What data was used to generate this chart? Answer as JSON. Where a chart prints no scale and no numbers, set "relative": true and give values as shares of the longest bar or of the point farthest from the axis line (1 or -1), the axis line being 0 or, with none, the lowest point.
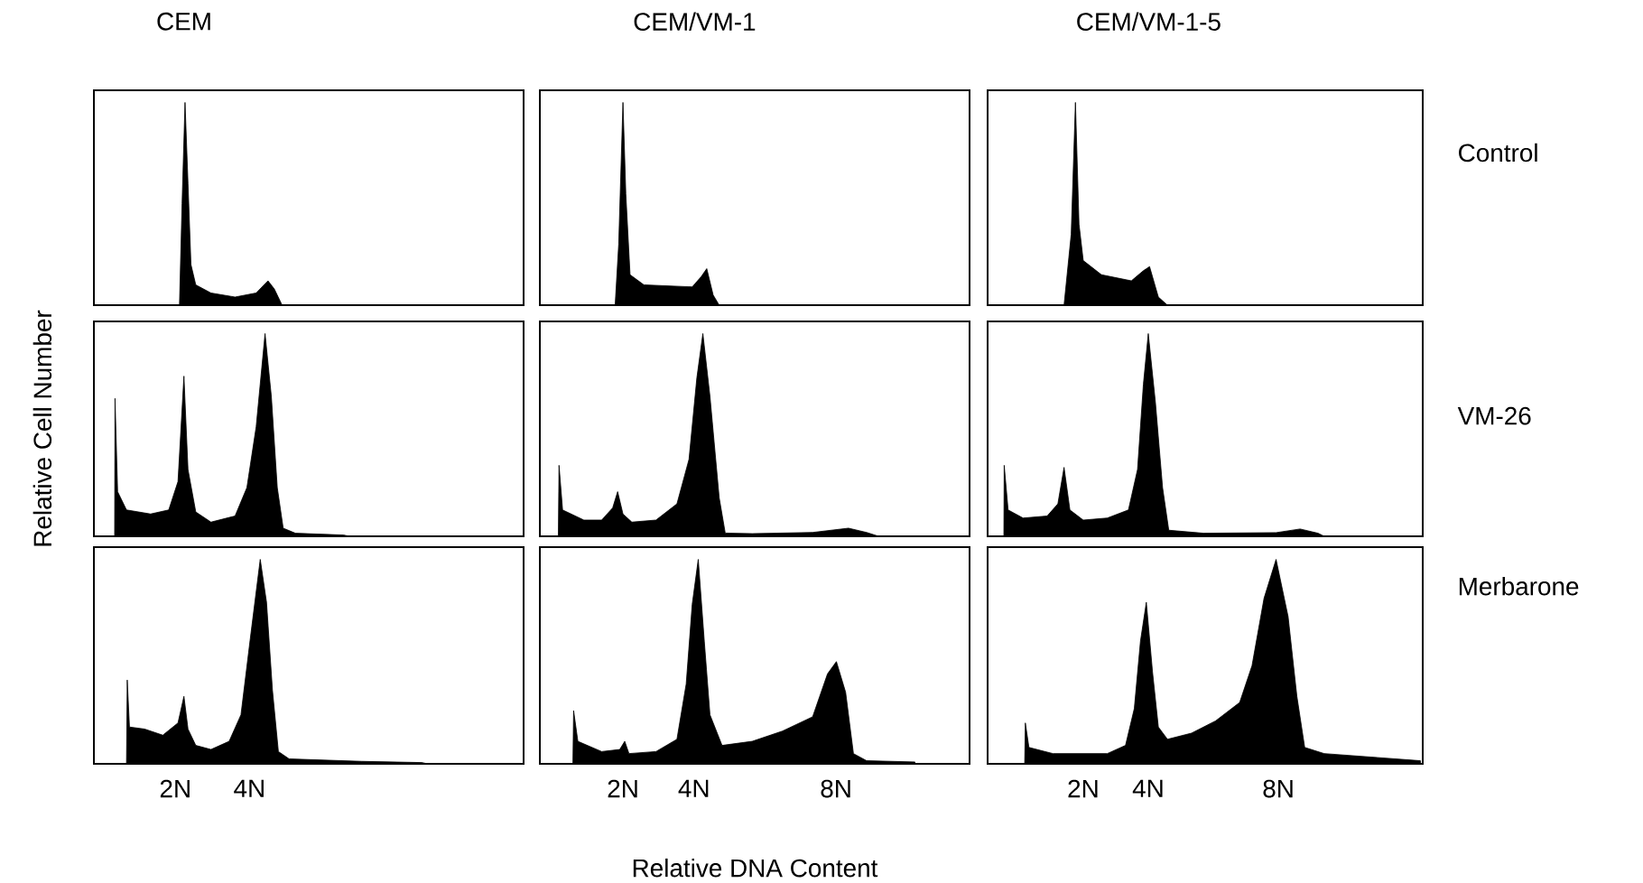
{
  "chart_data": [
    {
      "type": "area",
      "relative": true,
      "title": "CEM",
      "tick_labels": false,
      "color": "#000000",
      "xlim": [
        -0.2,
        11.4
      ],
      "x": [
        2.11,
        2.18,
        2.26,
        2.34,
        2.42,
        2.55,
        2.96,
        3.61,
        4.18,
        4.5,
        4.67,
        4.88
      ],
      "values": [
        0,
        0.5,
        1,
        0.6,
        0.2,
        0.1,
        0.06,
        0.04,
        0.06,
        0.12,
        0.08,
        0
      ]
    },
    {
      "type": "area",
      "relative": true,
      "title": "CEM/VM-1",
      "tick_labels": false,
      "color": "#000000",
      "xlim": [
        -0.34,
        11.76
      ],
      "x": [
        1.78,
        1.88,
        2.0,
        2.08,
        2.2,
        2.59,
        3.95,
        4.2,
        4.36,
        4.54,
        4.71
      ],
      "values": [
        0,
        0.3,
        1,
        0.55,
        0.15,
        0.1,
        0.09,
        0.14,
        0.18,
        0.05,
        0
      ]
    },
    {
      "type": "area",
      "relative": true,
      "title": "CEM/VM-1-5",
      "y2label": "Control",
      "tick_labels": false,
      "color": "#000000",
      "xlim": [
        -0.94,
        12.44
      ],
      "x": [
        1.41,
        1.63,
        1.76,
        1.87,
        2.0,
        2.56,
        3.48,
        3.85,
        4.04,
        4.31,
        4.59
      ],
      "values": [
        0,
        0.35,
        1,
        0.4,
        0.22,
        0.15,
        0.12,
        0.17,
        0.19,
        0.04,
        0
      ]
    },
    {
      "type": "area",
      "relative": true,
      "ylabel": "Relative Cell Number",
      "tick_labels": false,
      "color": "#000000",
      "xlim": [
        -0.2,
        11.4
      ],
      "x": [
        0.36,
        0.37,
        0.44,
        0.68,
        1.33,
        1.82,
        2.07,
        2.23,
        2.34,
        2.55,
        2.96,
        3.61,
        3.93,
        4.18,
        4.42,
        4.59,
        4.75,
        4.91,
        5.24,
        6.54,
        6.7
      ],
      "values": [
        0,
        0.68,
        0.22,
        0.13,
        0.11,
        0.13,
        0.27,
        0.79,
        0.33,
        0.12,
        0.07,
        0.1,
        0.24,
        0.54,
        1,
        0.69,
        0.24,
        0.04,
        0.015,
        0.006,
        0
      ]
    },
    {
      "type": "area",
      "relative": true,
      "tick_labels": false,
      "color": "#000000",
      "xlim": [
        -0.34,
        11.76
      ],
      "x": [
        0.18,
        0.2,
        0.3,
        0.9,
        1.4,
        1.71,
        1.85,
        2.0,
        2.25,
        2.93,
        3.52,
        3.86,
        4.08,
        4.25,
        4.45,
        4.71,
        4.88,
        5.64,
        7.34,
        8.35,
        8.86,
        9.2
      ],
      "values": [
        0,
        0.35,
        0.13,
        0.08,
        0.08,
        0.14,
        0.22,
        0.11,
        0.07,
        0.08,
        0.16,
        0.38,
        0.78,
        1,
        0.69,
        0.19,
        0.016,
        0.013,
        0.019,
        0.04,
        0.019,
        0
      ]
    },
    {
      "type": "area",
      "relative": true,
      "y2label": "VM-26",
      "tick_labels": false,
      "color": "#000000",
      "xlim": [
        -0.94,
        12.44
      ],
      "x": [
        -0.44,
        -0.43,
        -0.31,
        0.15,
        0.89,
        1.22,
        1.41,
        1.59,
        2.0,
        2.74,
        3.39,
        3.67,
        3.85,
        4.0,
        4.22,
        4.44,
        4.63,
        5.7,
        7.93,
        8.67,
        9.22,
        9.41
      ],
      "values": [
        0,
        0.35,
        0.13,
        0.09,
        0.1,
        0.16,
        0.34,
        0.13,
        0.08,
        0.09,
        0.13,
        0.33,
        0.75,
        1,
        0.66,
        0.24,
        0.03,
        0.015,
        0.018,
        0.036,
        0.015,
        0
      ]
    },
    {
      "type": "area",
      "relative": true,
      "tick_labels": "x",
      "color": "#000000",
      "xlim": [
        -0.2,
        11.4
      ],
      "xticks": [
        {
          "value": 2,
          "label": "2N"
        },
        {
          "value": 4,
          "label": "4N"
        }
      ],
      "x": [
        0.68,
        0.7,
        0.76,
        1.17,
        1.66,
        2.07,
        2.23,
        2.34,
        2.55,
        2.96,
        3.45,
        3.77,
        4.02,
        4.29,
        4.46,
        4.62,
        4.78,
        5.07,
        7.02,
        8.65,
        8.81
      ],
      "values": [
        0,
        0.41,
        0.18,
        0.17,
        0.14,
        0.2,
        0.33,
        0.17,
        0.09,
        0.07,
        0.11,
        0.24,
        0.61,
        1,
        0.79,
        0.36,
        0.06,
        0.024,
        0.012,
        0.006,
        0
      ]
    },
    {
      "type": "area",
      "relative": true,
      "xlabel": "Relative DNA Content",
      "tick_labels": "x",
      "color": "#000000",
      "xlim": [
        -0.34,
        11.76
      ],
      "xticks": [
        {
          "value": 2,
          "label": "2N"
        },
        {
          "value": 4,
          "label": "4N"
        },
        {
          "value": 8,
          "label": "8N"
        }
      ],
      "x": [
        0.59,
        0.61,
        0.73,
        1.4,
        1.91,
        2.05,
        2.17,
        2.93,
        3.52,
        3.78,
        3.95,
        4.12,
        4.29,
        4.45,
        4.79,
        5.64,
        6.49,
        7.34,
        7.76,
        8.01,
        8.27,
        8.49,
        8.86,
        10.22
      ],
      "values": [
        0,
        0.26,
        0.11,
        0.06,
        0.07,
        0.11,
        0.05,
        0.06,
        0.12,
        0.39,
        0.78,
        1,
        0.6,
        0.24,
        0.09,
        0.11,
        0.16,
        0.23,
        0.44,
        0.5,
        0.35,
        0.05,
        0.015,
        0.009
      ]
    },
    {
      "type": "area",
      "relative": true,
      "y2label": "Merbarone",
      "tick_labels": "x",
      "color": "#000000",
      "xlim": [
        -0.94,
        12.44
      ],
      "xticks": [
        {
          "value": 2,
          "label": "2N"
        },
        {
          "value": 4,
          "label": "4N"
        },
        {
          "value": 8,
          "label": "8N"
        }
      ],
      "x": [
        0.2,
        0.22,
        0.33,
        1.07,
        1.81,
        2.74,
        3.3,
        3.57,
        3.76,
        3.94,
        4.13,
        4.31,
        4.59,
        5.33,
        6.07,
        6.81,
        7.19,
        7.56,
        7.93,
        8.3,
        8.57,
        8.81,
        9.41,
        12.37
      ],
      "values": [
        0,
        0.2,
        0.08,
        0.05,
        0.05,
        0.05,
        0.09,
        0.27,
        0.6,
        0.79,
        0.45,
        0.18,
        0.12,
        0.15,
        0.21,
        0.3,
        0.48,
        0.81,
        1,
        0.72,
        0.33,
        0.08,
        0.05,
        0.015
      ]
    }
  ]
}
